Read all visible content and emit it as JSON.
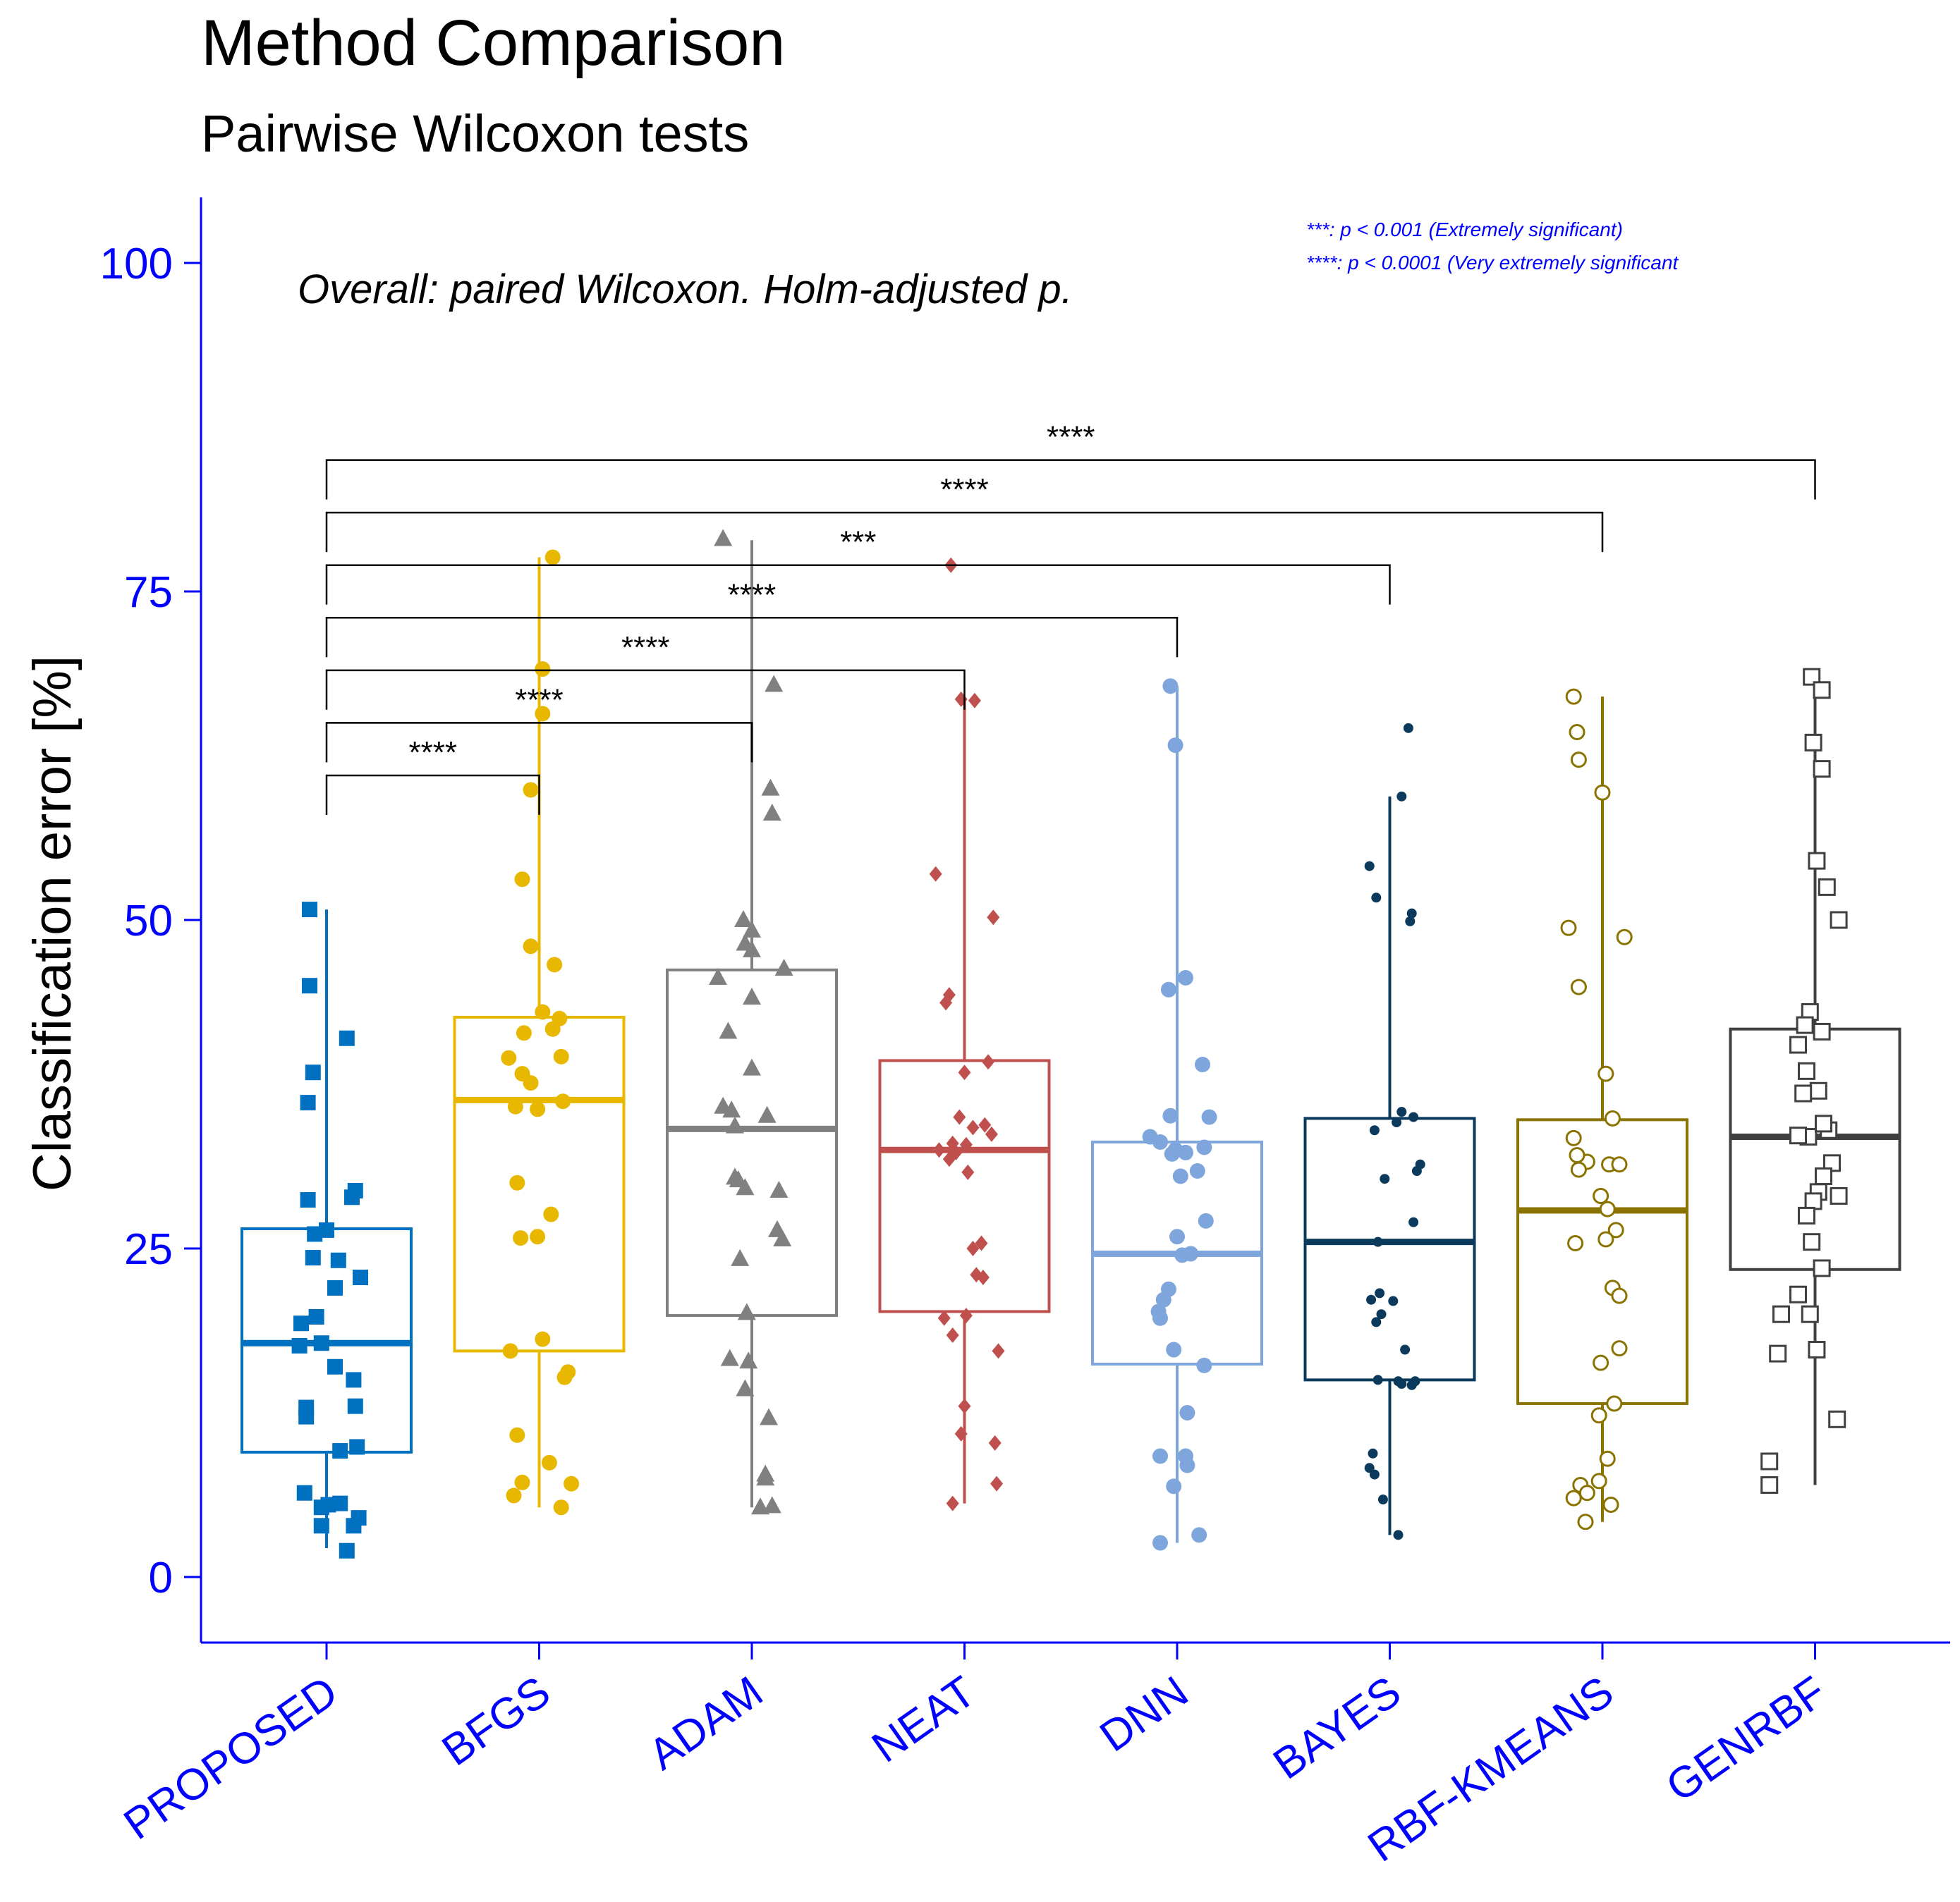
{
  "chart_data": {
    "type": "boxplot",
    "title": "Method Comparison",
    "subtitle": "Pairwise Wilcoxon tests",
    "annotation": "Overall: paired Wilcoxon. Holm-adjusted p.",
    "ylabel": "Classification error [%]",
    "xlabel": "",
    "ylim": [
      -5,
      105
    ],
    "yticks": [
      0,
      25,
      50,
      75,
      100
    ],
    "categories": [
      "PROPOSED",
      "BFGS",
      "ADAM",
      "NEAT",
      "DNN",
      "BAYES",
      "RBF-KMEANS",
      "GENRBF"
    ],
    "legend": [
      "***: p < 0.001  (Extremely significant)",
      "****: p < 0.0001 (Very extremely significant"
    ],
    "colors": {
      "axis": "#0000FF",
      "text": "#000000",
      "PROPOSED": "#0070C0",
      "BFGS": "#E8B800",
      "ADAM": "#808080",
      "NEAT": "#C0504D",
      "DNN": "#7EA6DC",
      "BAYES": "#0B3A5C",
      "RBF-KMEANS": "#8A7300",
      "GENRBF": "#404040"
    },
    "series": [
      {
        "category": "PROPOSED",
        "marker": "filled-square",
        "whisker_low": 2.2,
        "q1": 9.5,
        "median": 17.8,
        "q3": 26.5,
        "whisker_high": 50.8,
        "points": [
          [
            -0.1,
            50.8
          ],
          [
            -0.1,
            45.0
          ],
          [
            0.12,
            41.0
          ],
          [
            -0.08,
            38.4
          ],
          [
            -0.11,
            36.1
          ],
          [
            -0.11,
            28.7
          ],
          [
            0.17,
            29.4
          ],
          [
            0.15,
            28.9
          ],
          [
            0.0,
            26.4
          ],
          [
            -0.07,
            26.1
          ],
          [
            -0.08,
            24.3
          ],
          [
            0.07,
            24.1
          ],
          [
            0.2,
            22.8
          ],
          [
            0.05,
            22.0
          ],
          [
            -0.06,
            19.8
          ],
          [
            -0.15,
            19.3
          ],
          [
            -0.03,
            17.8
          ],
          [
            -0.16,
            17.6
          ],
          [
            0.05,
            16.0
          ],
          [
            0.16,
            15.0
          ],
          [
            0.17,
            13.0
          ],
          [
            -0.12,
            12.9
          ],
          [
            -0.12,
            12.2
          ],
          [
            0.18,
            9.9
          ],
          [
            0.08,
            9.6
          ],
          [
            -0.13,
            6.4
          ],
          [
            0.08,
            5.6
          ],
          [
            0.01,
            5.5
          ],
          [
            -0.03,
            5.3
          ],
          [
            0.19,
            4.5
          ],
          [
            0.16,
            3.9
          ],
          [
            -0.03,
            3.9
          ],
          [
            0.12,
            2.0
          ]
        ]
      },
      {
        "category": "BFGS",
        "marker": "filled-circle",
        "whisker_low": 5.3,
        "q1": 17.2,
        "median": 36.3,
        "q3": 42.6,
        "whisker_high": 77.6,
        "points": [
          [
            0.08,
            77.6
          ],
          [
            0.02,
            69.1
          ],
          [
            0.02,
            65.7
          ],
          [
            -0.05,
            59.9
          ],
          [
            -0.1,
            53.1
          ],
          [
            -0.05,
            48.0
          ],
          [
            0.09,
            46.6
          ],
          [
            0.02,
            43.0
          ],
          [
            0.12,
            42.5
          ],
          [
            0.08,
            41.7
          ],
          [
            -0.09,
            41.4
          ],
          [
            0.13,
            39.6
          ],
          [
            -0.18,
            39.5
          ],
          [
            -0.1,
            38.3
          ],
          [
            -0.05,
            37.6
          ],
          [
            0.14,
            36.2
          ],
          [
            -0.14,
            35.8
          ],
          [
            -0.01,
            35.6
          ],
          [
            -0.13,
            30.0
          ],
          [
            0.07,
            27.6
          ],
          [
            -0.01,
            25.9
          ],
          [
            -0.11,
            25.8
          ],
          [
            0.02,
            18.1
          ],
          [
            -0.17,
            17.2
          ],
          [
            0.17,
            15.6
          ],
          [
            0.15,
            15.2
          ],
          [
            -0.13,
            10.8
          ],
          [
            0.06,
            8.7
          ],
          [
            -0.1,
            7.2
          ],
          [
            0.19,
            7.1
          ],
          [
            -0.15,
            6.2
          ],
          [
            0.13,
            5.3
          ]
        ]
      },
      {
        "category": "ADAM",
        "marker": "filled-triangle",
        "whisker_low": 5.3,
        "q1": 19.9,
        "median": 34.1,
        "q3": 46.2,
        "whisker_high": 78.9,
        "points": [
          [
            -0.17,
            79.0
          ],
          [
            0.13,
            67.9
          ],
          [
            0.11,
            60.0
          ],
          [
            0.12,
            58.1
          ],
          [
            -0.05,
            50.0
          ],
          [
            0.0,
            49.2
          ],
          [
            -0.04,
            48.2
          ],
          [
            0.0,
            47.7
          ],
          [
            0.19,
            46.3
          ],
          [
            -0.2,
            45.6
          ],
          [
            0.0,
            44.1
          ],
          [
            -0.14,
            41.5
          ],
          [
            0.0,
            38.7
          ],
          [
            -0.17,
            35.8
          ],
          [
            -0.12,
            35.5
          ],
          [
            0.09,
            35.1
          ],
          [
            -0.1,
            34.3
          ],
          [
            -0.1,
            30.4
          ],
          [
            -0.08,
            30.2
          ],
          [
            -0.04,
            29.6
          ],
          [
            0.16,
            29.4
          ],
          [
            0.15,
            26.4
          ],
          [
            0.18,
            25.7
          ],
          [
            -0.07,
            24.2
          ],
          [
            -0.03,
            20.1
          ],
          [
            -0.13,
            16.6
          ],
          [
            -0.02,
            16.4
          ],
          [
            -0.04,
            14.3
          ],
          [
            0.1,
            12.1
          ],
          [
            0.08,
            7.8
          ],
          [
            0.08,
            7.5
          ],
          [
            0.05,
            5.3
          ],
          [
            0.12,
            5.4
          ]
        ]
      },
      {
        "category": "NEAT",
        "marker": "filled-diamond",
        "whisker_low": 5.6,
        "q1": 20.2,
        "median": 32.5,
        "q3": 39.3,
        "whisker_high": 66.8,
        "points": [
          [
            -0.08,
            77.0
          ],
          [
            -0.02,
            66.8
          ],
          [
            0.06,
            66.7
          ],
          [
            -0.17,
            53.5
          ],
          [
            0.17,
            50.2
          ],
          [
            -0.09,
            44.3
          ],
          [
            -0.11,
            43.7
          ],
          [
            0.14,
            39.2
          ],
          [
            0.0,
            38.4
          ],
          [
            -0.03,
            35.0
          ],
          [
            0.12,
            34.4
          ],
          [
            0.05,
            34.2
          ],
          [
            0.16,
            33.7
          ],
          [
            -0.07,
            33.0
          ],
          [
            0.01,
            32.9
          ],
          [
            -0.15,
            32.5
          ],
          [
            -0.05,
            32.3
          ],
          [
            -0.09,
            31.8
          ],
          [
            0.02,
            30.8
          ],
          [
            0.1,
            25.4
          ],
          [
            0.05,
            25.0
          ],
          [
            0.07,
            23.0
          ],
          [
            0.11,
            22.8
          ],
          [
            -0.12,
            19.7
          ],
          [
            0.01,
            19.9
          ],
          [
            -0.07,
            18.4
          ],
          [
            0.2,
            17.2
          ],
          [
            0.0,
            13.0
          ],
          [
            -0.02,
            10.9
          ],
          [
            0.18,
            10.2
          ],
          [
            0.19,
            7.1
          ],
          [
            -0.07,
            5.6
          ]
        ]
      },
      {
        "category": "DNN",
        "marker": "filled-circle",
        "whisker_low": 2.6,
        "q1": 16.2,
        "median": 24.6,
        "q3": 33.1,
        "whisker_high": 67.8,
        "points": [
          [
            -0.04,
            67.8
          ],
          [
            -0.01,
            63.3
          ],
          [
            0.05,
            45.6
          ],
          [
            -0.05,
            44.7
          ],
          [
            0.15,
            39.0
          ],
          [
            -0.04,
            35.1
          ],
          [
            0.19,
            35.0
          ],
          [
            -0.16,
            33.5
          ],
          [
            -0.1,
            33.1
          ],
          [
            0.16,
            32.7
          ],
          [
            -0.01,
            32.5
          ],
          [
            0.05,
            32.3
          ],
          [
            -0.03,
            32.2
          ],
          [
            0.12,
            30.9
          ],
          [
            0.02,
            30.5
          ],
          [
            0.17,
            27.1
          ],
          [
            0.0,
            25.9
          ],
          [
            0.03,
            24.5
          ],
          [
            0.08,
            24.6
          ],
          [
            -0.05,
            21.9
          ],
          [
            -0.08,
            21.1
          ],
          [
            -0.11,
            20.2
          ],
          [
            -0.1,
            19.7
          ],
          [
            -0.02,
            17.3
          ],
          [
            0.16,
            16.1
          ],
          [
            0.06,
            12.5
          ],
          [
            -0.1,
            9.2
          ],
          [
            0.05,
            9.2
          ],
          [
            0.06,
            8.5
          ],
          [
            -0.02,
            6.9
          ],
          [
            0.13,
            3.2
          ],
          [
            -0.1,
            2.6
          ]
        ]
      },
      {
        "category": "BAYES",
        "marker": "small-filled-circle",
        "whisker_low": 3.2,
        "q1": 15.0,
        "median": 25.5,
        "q3": 34.9,
        "whisker_high": 59.4,
        "points": [
          [
            0.11,
            64.6
          ],
          [
            0.07,
            59.4
          ],
          [
            -0.12,
            54.1
          ],
          [
            -0.08,
            51.7
          ],
          [
            0.13,
            50.5
          ],
          [
            0.12,
            49.9
          ],
          [
            0.14,
            35.0
          ],
          [
            0.07,
            35.4
          ],
          [
            0.04,
            34.6
          ],
          [
            -0.09,
            34.0
          ],
          [
            0.18,
            31.4
          ],
          [
            0.16,
            30.9
          ],
          [
            -0.03,
            30.3
          ],
          [
            0.14,
            27.0
          ],
          [
            -0.07,
            25.5
          ],
          [
            -0.11,
            21.1
          ],
          [
            0.02,
            21.0
          ],
          [
            -0.08,
            19.4
          ],
          [
            -0.06,
            21.6
          ],
          [
            0.09,
            17.3
          ],
          [
            0.15,
            14.9
          ],
          [
            0.05,
            14.9
          ],
          [
            -0.07,
            15.0
          ],
          [
            -0.1,
            9.4
          ],
          [
            -0.12,
            8.3
          ],
          [
            -0.09,
            7.8
          ],
          [
            -0.04,
            5.9
          ],
          [
            0.05,
            3.2
          ],
          [
            0.07,
            14.7
          ],
          [
            0.13,
            14.6
          ],
          [
            -0.05,
            20.0
          ]
        ]
      },
      {
        "category": "RBF-KMEANS",
        "marker": "open-circle",
        "whisker_low": 4.2,
        "q1": 13.2,
        "median": 27.9,
        "q3": 34.8,
        "whisker_high": 67.0,
        "points": [
          [
            -0.17,
            67.0
          ],
          [
            -0.15,
            64.3
          ],
          [
            -0.14,
            62.2
          ],
          [
            0.0,
            59.7
          ],
          [
            -0.2,
            49.4
          ],
          [
            0.13,
            48.7
          ],
          [
            -0.14,
            44.9
          ],
          [
            0.02,
            38.3
          ],
          [
            0.06,
            34.9
          ],
          [
            -0.17,
            33.4
          ],
          [
            -0.09,
            31.6
          ],
          [
            0.04,
            31.4
          ],
          [
            0.1,
            31.4
          ],
          [
            -0.15,
            32.1
          ],
          [
            -0.14,
            31.0
          ],
          [
            0.03,
            28.0
          ],
          [
            0.08,
            26.4
          ],
          [
            0.02,
            25.7
          ],
          [
            -0.16,
            25.4
          ],
          [
            0.06,
            22.0
          ],
          [
            0.1,
            21.4
          ],
          [
            0.1,
            17.4
          ],
          [
            -0.01,
            16.3
          ],
          [
            0.07,
            13.2
          ],
          [
            -0.02,
            12.3
          ],
          [
            0.03,
            9.0
          ],
          [
            -0.02,
            7.3
          ],
          [
            -0.13,
            7.0
          ],
          [
            -0.09,
            6.4
          ],
          [
            -0.17,
            6.0
          ],
          [
            0.05,
            5.5
          ],
          [
            -0.1,
            4.2
          ],
          [
            -0.01,
            29.0
          ]
        ]
      },
      {
        "category": "GENRBF",
        "marker": "open-square",
        "whisker_low": 7.0,
        "q1": 23.4,
        "median": 33.5,
        "q3": 41.7,
        "whisker_high": 68.5,
        "points": [
          [
            -0.02,
            68.5
          ],
          [
            0.04,
            67.5
          ],
          [
            -0.01,
            63.5
          ],
          [
            0.04,
            61.5
          ],
          [
            0.01,
            54.5
          ],
          [
            0.07,
            52.5
          ],
          [
            0.14,
            50.0
          ],
          [
            -0.03,
            43.0
          ],
          [
            -0.06,
            42.0
          ],
          [
            0.04,
            41.5
          ],
          [
            -0.1,
            40.5
          ],
          [
            -0.05,
            38.5
          ],
          [
            0.02,
            37.0
          ],
          [
            -0.07,
            36.8
          ],
          [
            0.08,
            34.0
          ],
          [
            -0.04,
            33.5
          ],
          [
            0.05,
            34.5
          ],
          [
            -0.1,
            33.6
          ],
          [
            0.1,
            31.5
          ],
          [
            0.05,
            30.5
          ],
          [
            0.02,
            29.3
          ],
          [
            -0.01,
            28.6
          ],
          [
            0.14,
            29.0
          ],
          [
            -0.05,
            27.5
          ],
          [
            -0.02,
            25.5
          ],
          [
            0.04,
            23.5
          ],
          [
            -0.1,
            21.5
          ],
          [
            -0.03,
            20.0
          ],
          [
            0.01,
            17.3
          ],
          [
            -0.22,
            17.0
          ],
          [
            0.13,
            12.0
          ],
          [
            -0.27,
            8.8
          ],
          [
            -0.27,
            7.0
          ],
          [
            -0.2,
            20.0
          ]
        ]
      }
    ],
    "comparisons": [
      {
        "from": "PROPOSED",
        "to": "BFGS",
        "label": "****",
        "y": 61
      },
      {
        "from": "PROPOSED",
        "to": "ADAM",
        "label": "****",
        "y": 65
      },
      {
        "from": "PROPOSED",
        "to": "NEAT",
        "label": "****",
        "y": 69
      },
      {
        "from": "PROPOSED",
        "to": "DNN",
        "label": "****",
        "y": 73
      },
      {
        "from": "PROPOSED",
        "to": "BAYES",
        "label": "***",
        "y": 77
      },
      {
        "from": "PROPOSED",
        "to": "RBF-KMEANS",
        "label": "****",
        "y": 81
      },
      {
        "from": "PROPOSED",
        "to": "GENRBF",
        "label": "****",
        "y": 85
      }
    ]
  }
}
